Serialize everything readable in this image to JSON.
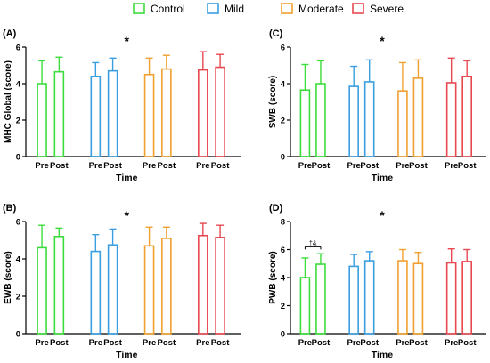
{
  "legend": [
    {
      "name": "Control",
      "color": "#3ddc3d"
    },
    {
      "name": "Mild",
      "color": "#3a9ee0"
    },
    {
      "name": "Moderate",
      "color": "#f0a030"
    },
    {
      "name": "Severe",
      "color": "#e84850"
    }
  ],
  "chart_data": [
    {
      "type": "bar",
      "panel_label": "(A)",
      "ylabel": "MHC Global (score)",
      "xlabel": "Time",
      "ylim": [
        0,
        6
      ],
      "yticks": [
        0,
        2,
        4,
        6
      ],
      "categories": [
        "Pre",
        "Post"
      ],
      "significance": "*",
      "series": [
        {
          "name": "Control",
          "values": [
            4.0,
            4.65
          ],
          "error": [
            1.25,
            0.8
          ]
        },
        {
          "name": "Mild",
          "values": [
            4.4,
            4.7
          ],
          "error": [
            0.75,
            0.7
          ]
        },
        {
          "name": "Moderate",
          "values": [
            4.5,
            4.8
          ],
          "error": [
            0.9,
            0.75
          ]
        },
        {
          "name": "Severe",
          "values": [
            4.75,
            4.9
          ],
          "error": [
            1.0,
            0.7
          ]
        }
      ]
    },
    {
      "type": "bar",
      "panel_label": "(C)",
      "ylabel": "SWB (score)",
      "xlabel": "Time",
      "ylim": [
        0,
        6
      ],
      "yticks": [
        0,
        2,
        4,
        6
      ],
      "categories": [
        "Pre",
        "Post"
      ],
      "significance": "*",
      "series": [
        {
          "name": "Control",
          "values": [
            3.65,
            4.0
          ],
          "error": [
            1.4,
            1.25
          ]
        },
        {
          "name": "Mild",
          "values": [
            3.85,
            4.1
          ],
          "error": [
            1.1,
            1.2
          ]
        },
        {
          "name": "Moderate",
          "values": [
            3.6,
            4.3
          ],
          "error": [
            1.55,
            1.0
          ]
        },
        {
          "name": "Severe",
          "values": [
            4.05,
            4.4
          ],
          "error": [
            1.35,
            0.85
          ]
        }
      ]
    },
    {
      "type": "bar",
      "panel_label": "(B)",
      "ylabel": "EWB (score)",
      "xlabel": "Time",
      "ylim": [
        0,
        6
      ],
      "yticks": [
        0,
        2,
        4,
        6
      ],
      "categories": [
        "Pre",
        "Post"
      ],
      "significance": "*",
      "series": [
        {
          "name": "Control",
          "values": [
            4.6,
            5.2
          ],
          "error": [
            1.2,
            0.45
          ]
        },
        {
          "name": "Mild",
          "values": [
            4.4,
            4.75
          ],
          "error": [
            0.9,
            0.85
          ]
        },
        {
          "name": "Moderate",
          "values": [
            4.7,
            5.1
          ],
          "error": [
            1.0,
            0.6
          ]
        },
        {
          "name": "Severe",
          "values": [
            5.25,
            5.15
          ],
          "error": [
            0.65,
            0.65
          ]
        }
      ]
    },
    {
      "type": "bar",
      "panel_label": "(D)",
      "ylabel": "PWB (score)",
      "xlabel": "Time",
      "ylim": [
        0,
        8
      ],
      "yticks": [
        0,
        2,
        4,
        6,
        8
      ],
      "categories": [
        "Pre",
        "Post"
      ],
      "significance": "*",
      "annotation": {
        "text": "†&",
        "group": "Control"
      },
      "series": [
        {
          "name": "Control",
          "values": [
            4.0,
            4.95
          ],
          "error": [
            1.4,
            0.75
          ]
        },
        {
          "name": "Mild",
          "values": [
            4.8,
            5.2
          ],
          "error": [
            0.85,
            0.65
          ]
        },
        {
          "name": "Moderate",
          "values": [
            5.2,
            5.0
          ],
          "error": [
            0.8,
            0.8
          ]
        },
        {
          "name": "Severe",
          "values": [
            5.05,
            5.15
          ],
          "error": [
            1.0,
            0.85
          ]
        }
      ]
    }
  ]
}
